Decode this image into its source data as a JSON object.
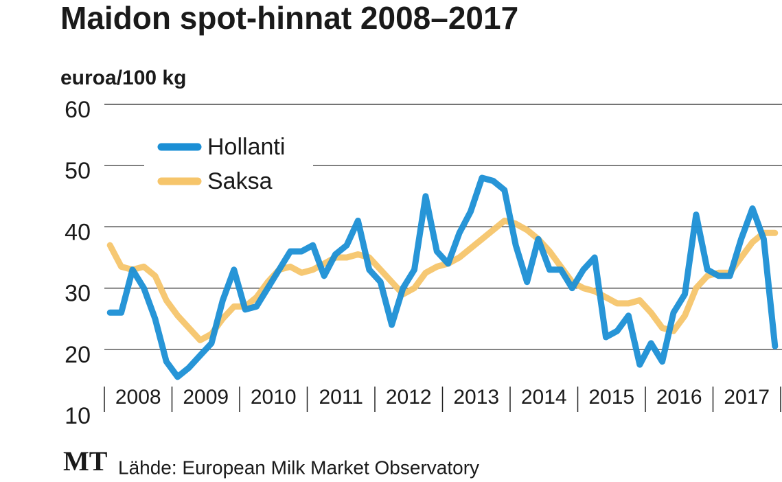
{
  "chart_data": {
    "type": "line",
    "title": "Maidon spot-hinnat 2008–2017",
    "y_label": "euroa/100 kg",
    "logo": "MT",
    "source": "Lähde: European Milk Market Observatory",
    "categories": [
      null,
      null,
      null,
      "2008",
      null,
      null,
      null,
      null,
      null,
      "2009",
      null,
      null,
      null,
      null,
      null,
      "2010",
      null,
      null,
      null,
      null,
      null,
      "2011",
      null,
      null,
      null,
      null,
      null,
      "2012",
      null,
      null,
      null,
      null,
      null,
      "2013",
      null,
      null,
      null,
      null,
      null,
      "2014",
      null,
      null,
      null,
      null,
      null,
      "2015",
      null,
      null,
      null,
      null,
      null,
      "2016",
      null,
      null,
      null,
      null,
      null,
      "2017",
      null,
      null
    ],
    "series": [
      {
        "name": "Saksa",
        "color": "#f6c56b",
        "values": [
          37,
          33.5,
          33,
          33.5,
          32,
          28,
          25.5,
          23.5,
          21.5,
          22.5,
          25,
          27,
          27,
          28.5,
          31,
          33,
          33.5,
          32.5,
          33,
          34,
          35,
          35,
          35.5,
          35,
          33,
          31,
          29,
          30,
          32.5,
          33.5,
          34,
          35,
          36.5,
          38,
          39.5,
          41,
          40.5,
          39.5,
          38,
          36,
          33.5,
          31,
          30,
          29.5,
          28.5,
          27.5,
          27.5,
          28,
          26,
          23.5,
          23,
          25.5,
          30,
          32,
          32.5,
          32.5,
          35,
          37.5,
          39,
          39
        ]
      },
      {
        "name": "Hollanti",
        "color": "#1b8fd5",
        "values": [
          26,
          26,
          33,
          30,
          25,
          18,
          15.5,
          17,
          19,
          21,
          28,
          33,
          26.5,
          27,
          30,
          33,
          36,
          36,
          37,
          32,
          35.5,
          37,
          41,
          33,
          31,
          24,
          30,
          33,
          45,
          36,
          34,
          39,
          42.5,
          48,
          47.5,
          46,
          37,
          31,
          38,
          33,
          33,
          30,
          33,
          35,
          22,
          23,
          25.5,
          17.5,
          21,
          18,
          26,
          29,
          42,
          33,
          32,
          32,
          38,
          43,
          38,
          20.5
        ]
      }
    ],
    "ylim": [
      10,
      60
    ],
    "yticks": [
      10,
      20,
      30,
      40,
      50,
      60
    ],
    "grid": true,
    "legend": "upper left"
  }
}
